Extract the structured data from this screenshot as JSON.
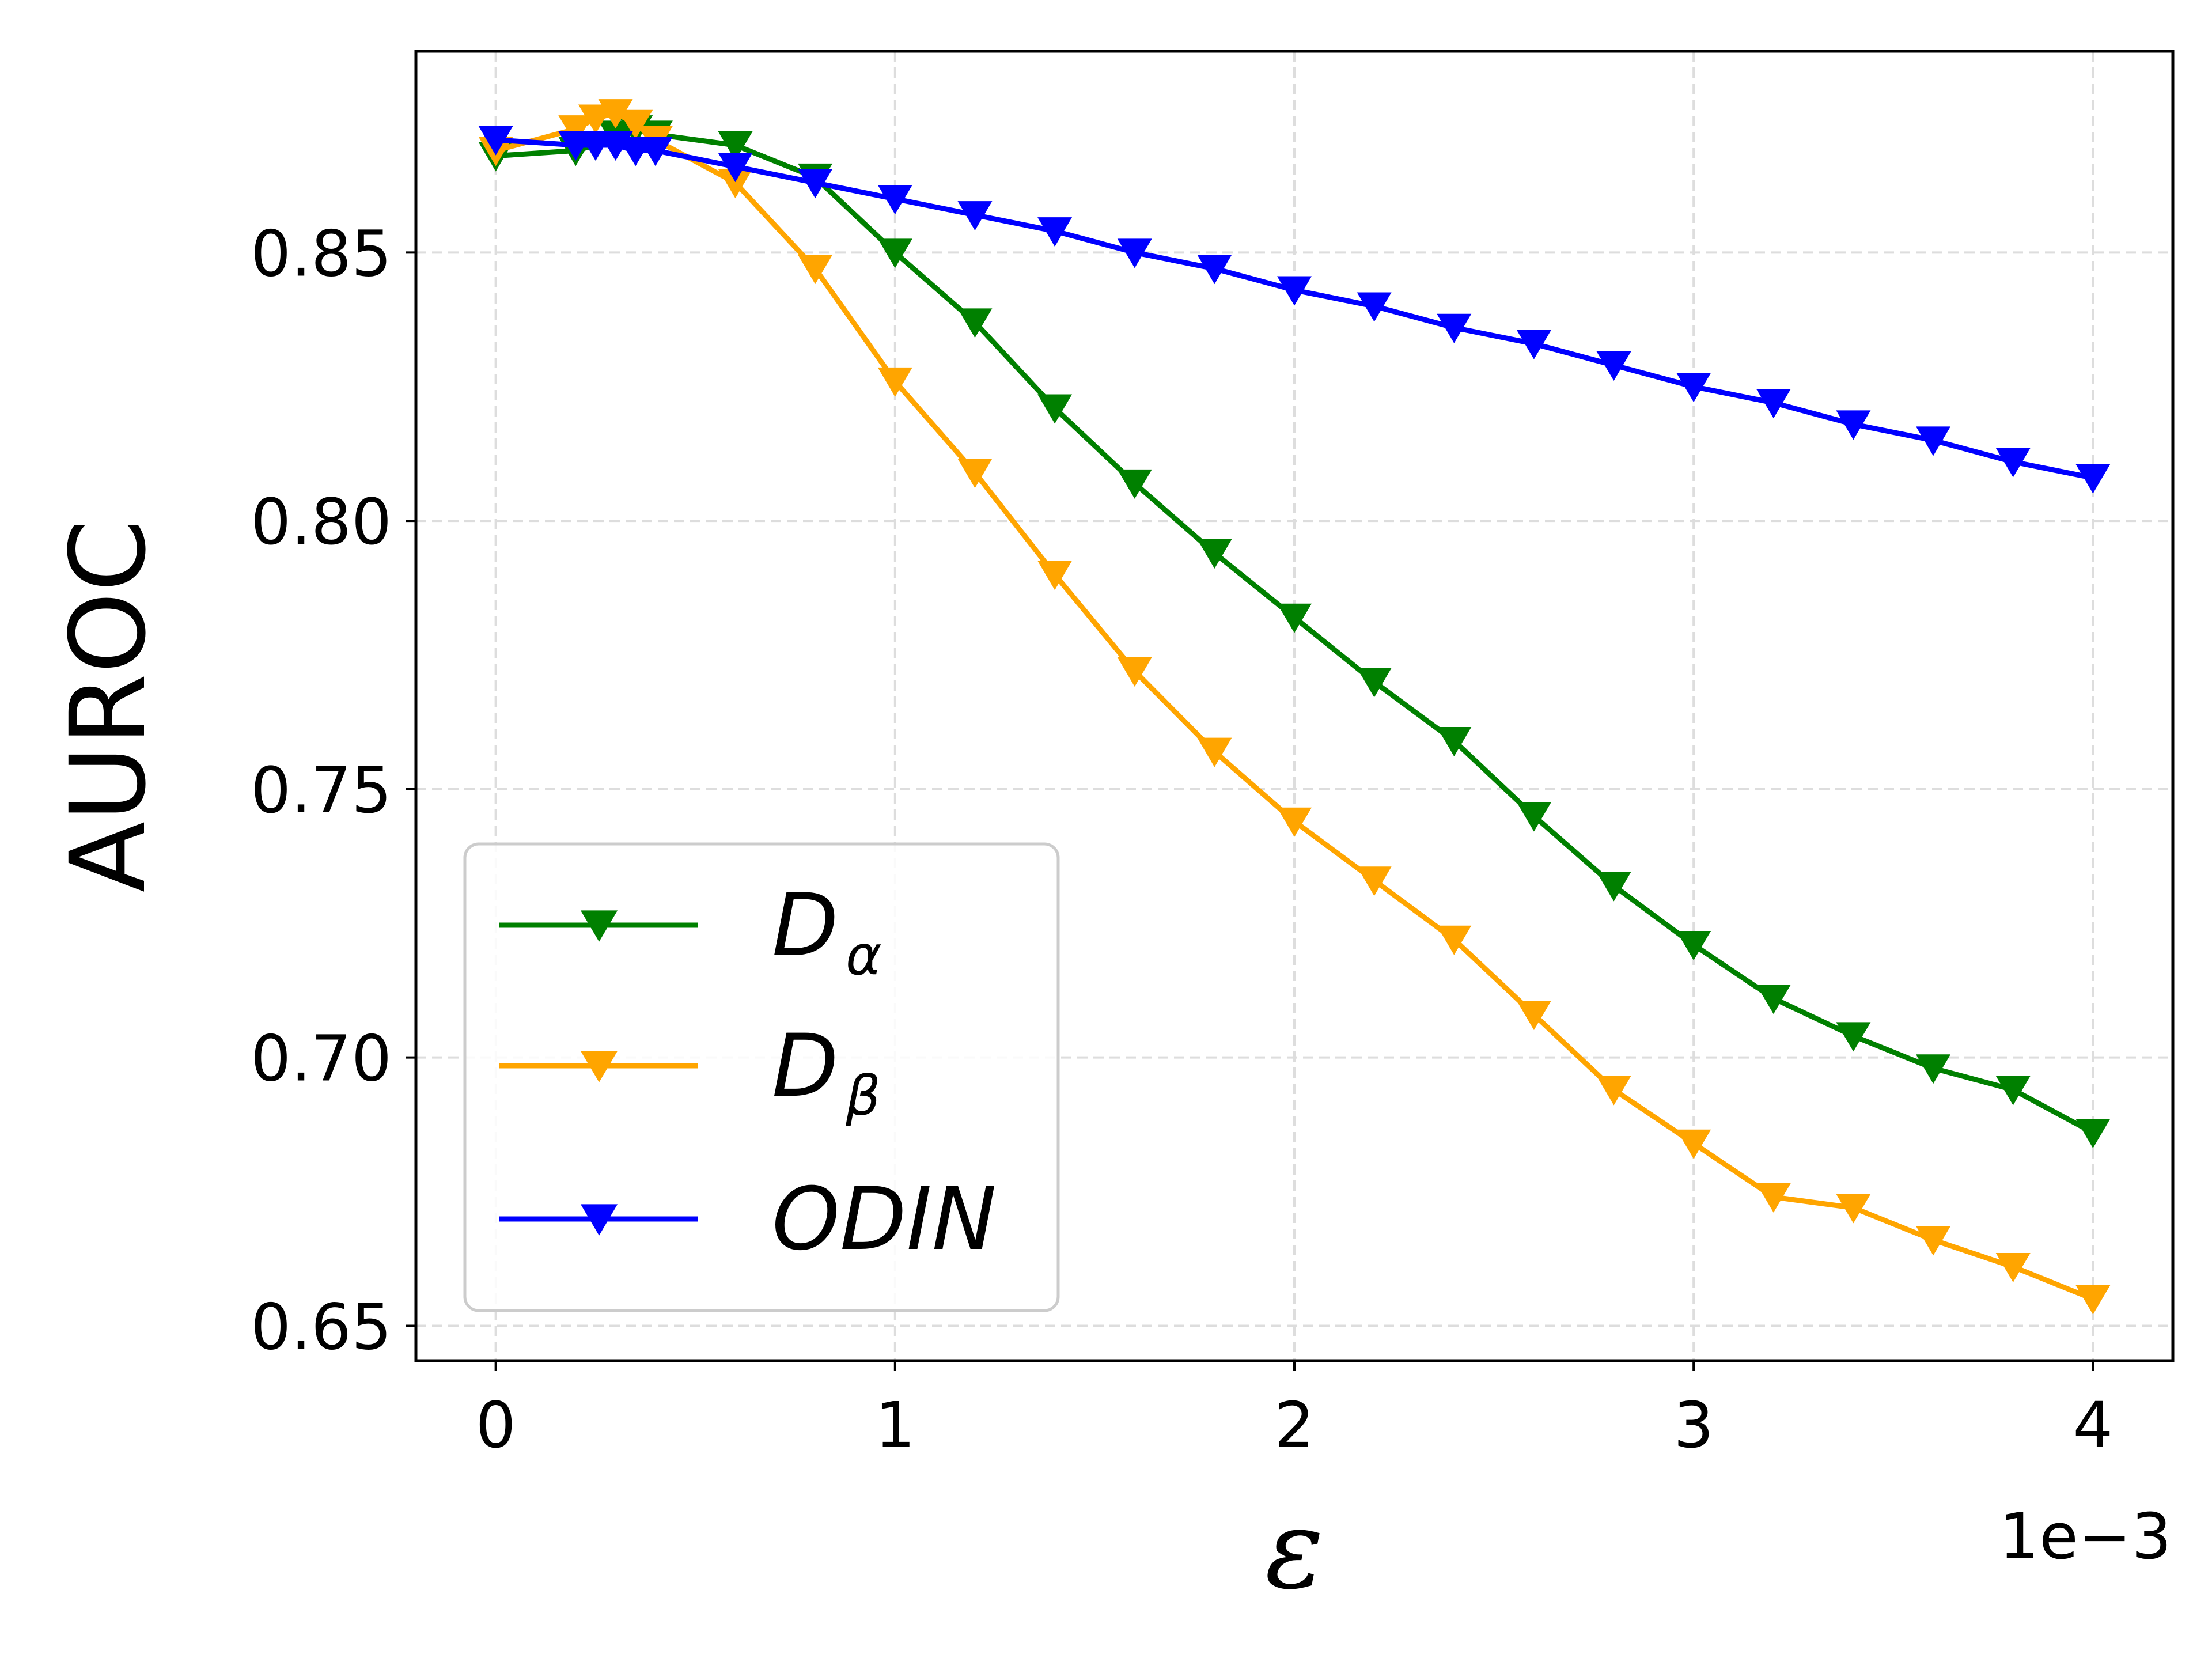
{
  "chart_data": {
    "type": "line",
    "title": "",
    "xlabel": "ε",
    "ylabel": "AUROC",
    "x_offset_text": "1e−3",
    "xlim": [
      -0.2,
      4.2
    ],
    "ylim": [
      0.6435,
      0.8875
    ],
    "xticks": [
      0,
      1,
      2,
      3,
      4
    ],
    "xtick_labels": [
      "0",
      "1",
      "2",
      "3",
      "4"
    ],
    "yticks": [
      0.65,
      0.7,
      0.75,
      0.8,
      0.85
    ],
    "ytick_labels": [
      "0.65",
      "0.70",
      "0.75",
      "0.80",
      "0.85"
    ],
    "grid": true,
    "legend_position": "lower-left",
    "series": [
      {
        "name": "D_alpha",
        "legend_main": "D",
        "legend_sub": "α",
        "color": "#008000",
        "marker": "triangle-down",
        "x": [
          0,
          0.2,
          0.25,
          0.3,
          0.35,
          0.4,
          0.6,
          0.8,
          1.0,
          1.2,
          1.4,
          1.6,
          1.8,
          2.0,
          2.2,
          2.4,
          2.6,
          2.8,
          3.0,
          3.2,
          3.4,
          3.6,
          3.8,
          4.0
        ],
        "y": [
          0.868,
          0.869,
          0.87,
          0.872,
          0.873,
          0.872,
          0.87,
          0.864,
          0.85,
          0.837,
          0.821,
          0.807,
          0.794,
          0.782,
          0.77,
          0.759,
          0.745,
          0.732,
          0.721,
          0.711,
          0.704,
          0.698,
          0.694,
          0.686
        ]
      },
      {
        "name": "D_beta",
        "legend_main": "D",
        "legend_sub": "β",
        "color": "#FFA500",
        "marker": "triangle-down",
        "x": [
          0,
          0.2,
          0.25,
          0.3,
          0.35,
          0.4,
          0.6,
          0.8,
          1.0,
          1.2,
          1.4,
          1.6,
          1.8,
          2.0,
          2.2,
          2.4,
          2.6,
          2.8,
          3.0,
          3.2,
          3.4,
          3.6,
          3.8,
          4.0
        ],
        "y": [
          0.869,
          0.873,
          0.875,
          0.876,
          0.874,
          0.871,
          0.863,
          0.847,
          0.826,
          0.809,
          0.79,
          0.772,
          0.757,
          0.744,
          0.733,
          0.722,
          0.708,
          0.694,
          0.684,
          0.674,
          0.672,
          0.666,
          0.661,
          0.655
        ]
      },
      {
        "name": "ODIN",
        "legend_main": "ODIN",
        "legend_sub": "",
        "color": "#0000FF",
        "marker": "triangle-down",
        "x": [
          0,
          0.2,
          0.25,
          0.3,
          0.35,
          0.4,
          0.6,
          0.8,
          1.0,
          1.2,
          1.4,
          1.6,
          1.8,
          2.0,
          2.2,
          2.4,
          2.6,
          2.8,
          3.0,
          3.2,
          3.4,
          3.6,
          3.8,
          4.0
        ],
        "y": [
          0.871,
          0.87,
          0.87,
          0.87,
          0.869,
          0.869,
          0.866,
          0.863,
          0.86,
          0.857,
          0.854,
          0.85,
          0.847,
          0.843,
          0.84,
          0.836,
          0.833,
          0.829,
          0.825,
          0.822,
          0.818,
          0.815,
          0.811,
          0.808
        ]
      }
    ]
  }
}
